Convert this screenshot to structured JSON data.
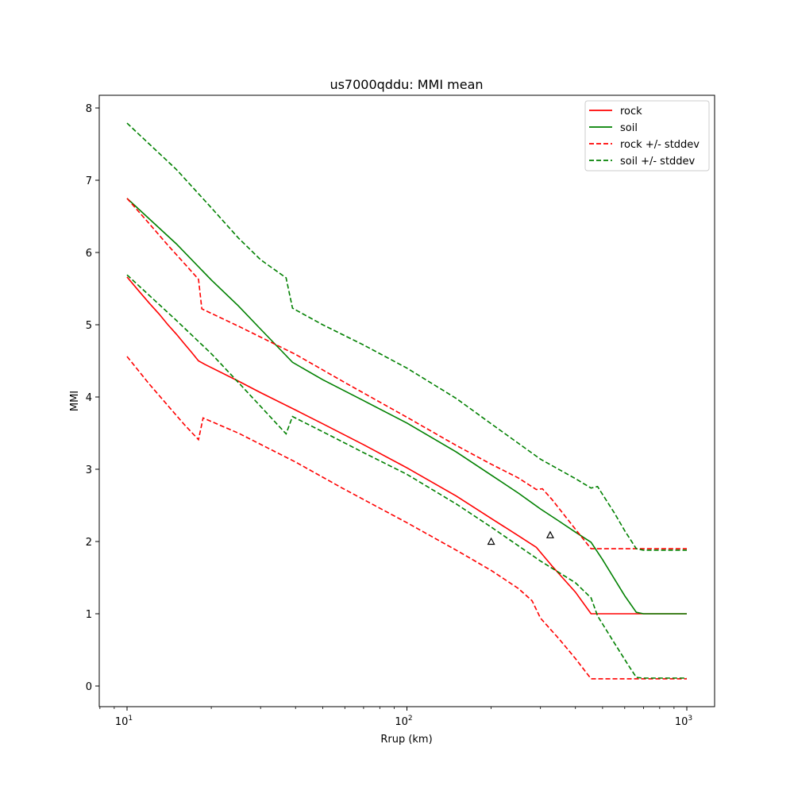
{
  "chart_data": {
    "type": "line",
    "title": "us7000qddu: MMI mean",
    "xlabel": "Rrup (km)",
    "ylabel": "MMI",
    "xscale": "log",
    "xlim": [
      8.0,
      1270
    ],
    "ylim": [
      -0.28,
      8.18
    ],
    "grid": false,
    "legend_position": "upper right",
    "x_ticks": [
      {
        "value": 10,
        "base": "10",
        "exp": "1"
      },
      {
        "value": 100,
        "base": "10",
        "exp": "2"
      },
      {
        "value": 1000,
        "base": "10",
        "exp": "3"
      }
    ],
    "y_ticks": [
      0,
      1,
      2,
      3,
      4,
      5,
      6,
      7,
      8
    ],
    "series": [
      {
        "name": "rock",
        "color": "#ff0000",
        "style": "solid",
        "points": [
          [
            10,
            5.66
          ],
          [
            11,
            5.47
          ],
          [
            12,
            5.3
          ],
          [
            13,
            5.15
          ],
          [
            14,
            5.0
          ],
          [
            15,
            4.87
          ],
          [
            16,
            4.74
          ],
          [
            17,
            4.62
          ],
          [
            18,
            4.5
          ],
          [
            19,
            4.45
          ],
          [
            25,
            4.22
          ],
          [
            30,
            4.06
          ],
          [
            40,
            3.82
          ],
          [
            50,
            3.63
          ],
          [
            70,
            3.34
          ],
          [
            100,
            3.02
          ],
          [
            150,
            2.63
          ],
          [
            200,
            2.32
          ],
          [
            250,
            2.08
          ],
          [
            290,
            1.92
          ],
          [
            330,
            1.66
          ],
          [
            400,
            1.3
          ],
          [
            455,
            1.0
          ],
          [
            600,
            1.0
          ],
          [
            1000,
            1.0
          ]
        ]
      },
      {
        "name": "soil",
        "color": "#008000",
        "style": "solid",
        "points": [
          [
            10,
            6.75
          ],
          [
            15,
            6.12
          ],
          [
            20,
            5.62
          ],
          [
            25,
            5.26
          ],
          [
            30,
            4.94
          ],
          [
            35,
            4.67
          ],
          [
            39,
            4.48
          ],
          [
            50,
            4.24
          ],
          [
            70,
            3.95
          ],
          [
            100,
            3.64
          ],
          [
            150,
            3.24
          ],
          [
            200,
            2.92
          ],
          [
            250,
            2.67
          ],
          [
            300,
            2.45
          ],
          [
            350,
            2.28
          ],
          [
            400,
            2.13
          ],
          [
            455,
            1.99
          ],
          [
            500,
            1.75
          ],
          [
            600,
            1.25
          ],
          [
            660,
            1.02
          ],
          [
            700,
            1.0
          ],
          [
            1000,
            1.0
          ]
        ]
      },
      {
        "name": "rock +/- stddev",
        "color": "#ff0000",
        "style": "dashed",
        "points": [
          [
            10,
            6.75
          ],
          [
            12,
            6.4
          ],
          [
            14,
            6.1
          ],
          [
            16,
            5.85
          ],
          [
            18,
            5.63
          ],
          [
            18.5,
            5.22
          ],
          [
            25,
            4.98
          ],
          [
            40,
            4.59
          ],
          [
            60,
            4.2
          ],
          [
            100,
            3.72
          ],
          [
            150,
            3.33
          ],
          [
            200,
            3.07
          ],
          [
            250,
            2.88
          ],
          [
            290,
            2.72
          ],
          [
            305,
            2.73
          ],
          [
            330,
            2.58
          ],
          [
            400,
            2.17
          ],
          [
            455,
            1.9
          ],
          [
            600,
            1.9
          ],
          [
            1000,
            1.9
          ]
        ]
      },
      {
        "name": "rock +/- stddev (lower)",
        "color": "#ff0000",
        "style": "dashed",
        "legend": false,
        "points": [
          [
            10,
            4.56
          ],
          [
            12,
            4.18
          ],
          [
            14,
            3.88
          ],
          [
            16,
            3.62
          ],
          [
            18,
            3.41
          ],
          [
            18.7,
            3.71
          ],
          [
            25,
            3.5
          ],
          [
            40,
            3.1
          ],
          [
            60,
            2.72
          ],
          [
            100,
            2.26
          ],
          [
            150,
            1.88
          ],
          [
            200,
            1.6
          ],
          [
            250,
            1.35
          ],
          [
            280,
            1.18
          ],
          [
            300,
            0.94
          ],
          [
            350,
            0.65
          ],
          [
            400,
            0.38
          ],
          [
            455,
            0.1
          ],
          [
            600,
            0.1
          ],
          [
            1000,
            0.1
          ]
        ]
      },
      {
        "name": "soil +/- stddev",
        "color": "#008000",
        "style": "dashed",
        "points": [
          [
            10,
            7.79
          ],
          [
            15,
            7.15
          ],
          [
            20,
            6.62
          ],
          [
            25,
            6.2
          ],
          [
            30,
            5.9
          ],
          [
            37,
            5.65
          ],
          [
            39,
            5.23
          ],
          [
            50,
            5.0
          ],
          [
            70,
            4.72
          ],
          [
            100,
            4.4
          ],
          [
            150,
            3.98
          ],
          [
            200,
            3.63
          ],
          [
            300,
            3.14
          ],
          [
            400,
            2.87
          ],
          [
            455,
            2.74
          ],
          [
            480,
            2.76
          ],
          [
            550,
            2.4
          ],
          [
            600,
            2.15
          ],
          [
            660,
            1.9
          ],
          [
            700,
            1.88
          ],
          [
            1000,
            1.88
          ]
        ]
      },
      {
        "name": "soil +/- stddev (lower)",
        "color": "#008000",
        "style": "dashed",
        "legend": false,
        "points": [
          [
            10,
            5.69
          ],
          [
            15,
            5.06
          ],
          [
            20,
            4.6
          ],
          [
            25,
            4.2
          ],
          [
            30,
            3.87
          ],
          [
            37,
            3.49
          ],
          [
            39,
            3.73
          ],
          [
            50,
            3.52
          ],
          [
            70,
            3.23
          ],
          [
            100,
            2.93
          ],
          [
            150,
            2.52
          ],
          [
            200,
            2.2
          ],
          [
            300,
            1.73
          ],
          [
            400,
            1.43
          ],
          [
            455,
            1.22
          ],
          [
            480,
            0.97
          ],
          [
            550,
            0.6
          ],
          [
            620,
            0.28
          ],
          [
            660,
            0.12
          ],
          [
            700,
            0.11
          ],
          [
            1000,
            0.11
          ]
        ]
      }
    ],
    "observations": {
      "marker": "triangle-open",
      "color": "#000000",
      "points": [
        [
          200,
          2.0
        ],
        [
          325,
          2.09
        ]
      ]
    },
    "legend": [
      {
        "label": "rock",
        "color": "#ff0000",
        "style": "solid"
      },
      {
        "label": "soil",
        "color": "#008000",
        "style": "solid"
      },
      {
        "label": "rock +/- stddev",
        "color": "#ff0000",
        "style": "dashed"
      },
      {
        "label": "soil +/- stddev",
        "color": "#008000",
        "style": "dashed"
      }
    ]
  }
}
